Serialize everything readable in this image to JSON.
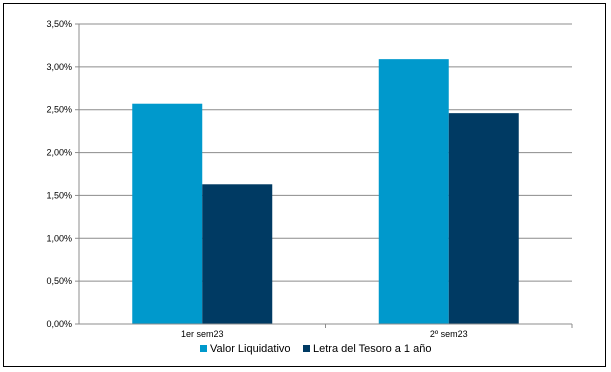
{
  "chart_data": {
    "type": "bar",
    "categories": [
      "1er sem23",
      "2º sem23"
    ],
    "series": [
      {
        "name": "Valor Liquidativo",
        "values": [
          2.57,
          3.09
        ],
        "color": "#0099cc"
      },
      {
        "name": "Letra del Tesoro a 1 año",
        "values": [
          1.63,
          2.46
        ],
        "color": "#003a63"
      }
    ],
    "ylim": [
      0,
      3.5
    ],
    "yticks": [
      "0,00%",
      "0,50%",
      "1,00%",
      "1,50%",
      "2,00%",
      "2,50%",
      "3,00%",
      "3,50%"
    ],
    "grid": true,
    "legend_position": "bottom",
    "title": "",
    "xlabel": "",
    "ylabel": ""
  }
}
